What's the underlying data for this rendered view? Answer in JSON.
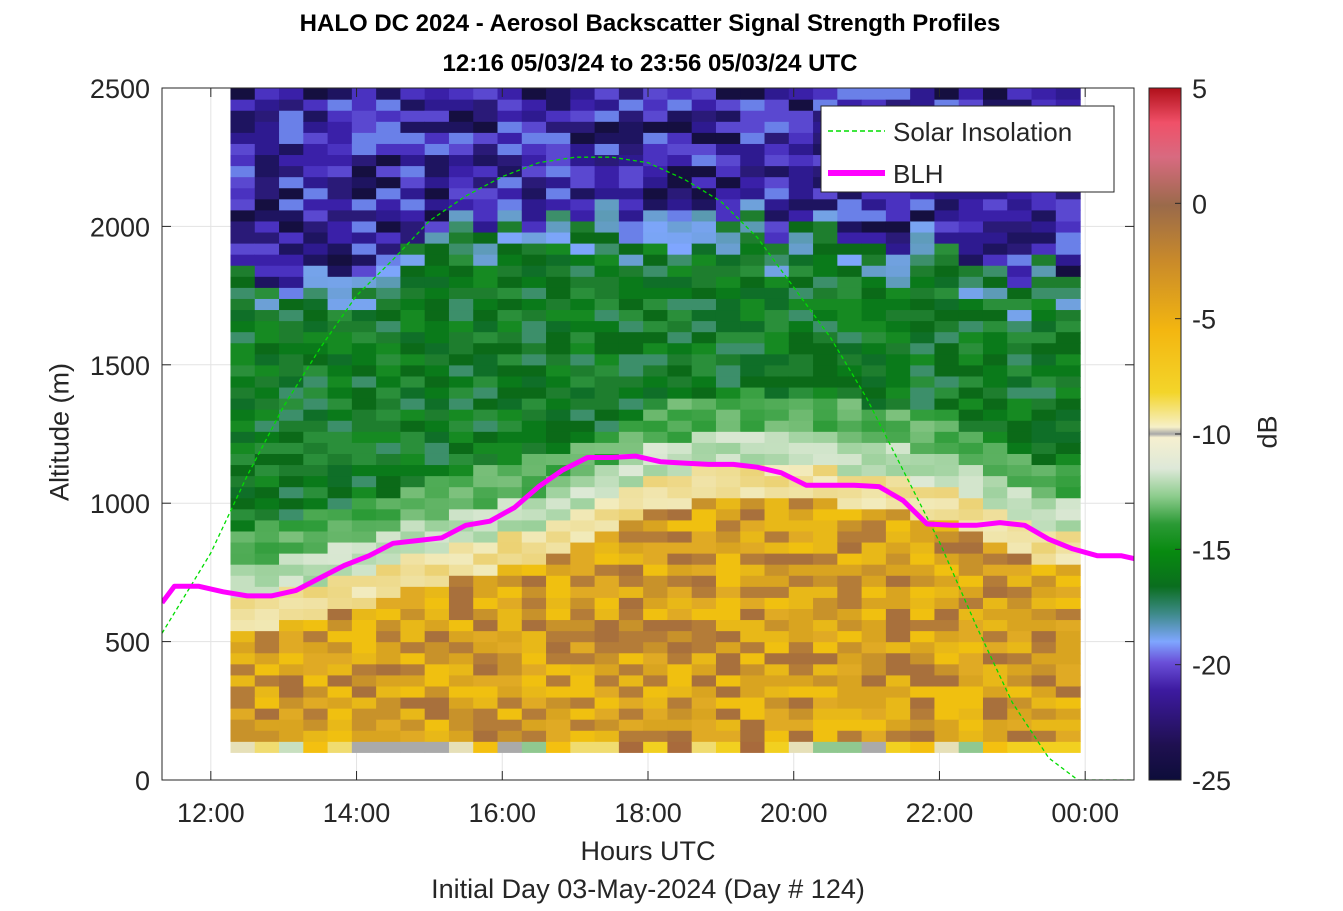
{
  "chart_data": {
    "type": "heatmap",
    "title": "HALO DC 2024 - Aerosol Backscatter Signal Strength Profiles",
    "subtitle": "12:16 05/03/24 to 23:56 05/03/24  UTC",
    "xlabel": "Hours UTC",
    "ylabel": "Altitude (m)",
    "footer": "Initial Day 03-May-2024 (Day # 124)",
    "xlim": [
      11.33,
      24.67
    ],
    "ylim": [
      0,
      2500
    ],
    "x_ticks": [
      12,
      14,
      16,
      18,
      20,
      22,
      24
    ],
    "x_tick_labels": [
      "12:00",
      "14:00",
      "16:00",
      "18:00",
      "20:00",
      "22:00",
      "00:00"
    ],
    "y_ticks": [
      0,
      500,
      1000,
      1500,
      2000,
      2500
    ],
    "y_tick_labels": [
      "0",
      "500",
      "1000",
      "1500",
      "2000",
      "2500"
    ],
    "grid": true,
    "colorbar": {
      "label": "dB",
      "range": [
        -25,
        5
      ],
      "ticks": [
        -25,
        -20,
        -15,
        -10,
        -5,
        0,
        5
      ],
      "tick_labels": [
        "-25",
        "-20",
        "-15",
        "-10",
        "-5",
        "0",
        "5"
      ]
    },
    "heatmap": {
      "x_start": 12.27,
      "x_end": 23.93,
      "columns": 35,
      "z_units": "dB",
      "layers": [
        {
          "name": "lowest bin",
          "y_range": [
            100,
            140
          ],
          "value_db": -8
        },
        {
          "name": "aerosol boundary layer",
          "y_range": [
            140,
            "top"
          ],
          "value_db_range": [
            -8,
            -3
          ]
        },
        {
          "name": "entrainment zone",
          "thickness_m": 150,
          "value_db": -11
        },
        {
          "name": "free troposphere green",
          "y_range": [
            "top",
            2100
          ],
          "value_db_range": [
            -18,
            -14
          ]
        },
        {
          "name": "upper free troposphere",
          "y_range": [
            1700,
            2500
          ],
          "value_db_range": [
            -25,
            -19
          ]
        }
      ],
      "boundary_layer_top_m": [
        650,
        660,
        680,
        700,
        720,
        740,
        770,
        790,
        820,
        850,
        860,
        880,
        900,
        930,
        960,
        1000,
        1050,
        1080,
        1100,
        1120,
        1130,
        1140,
        1130,
        1120,
        1110,
        1100,
        1080,
        1070,
        1060,
        1060,
        1000,
        950,
        920,
        890,
        880
      ]
    },
    "series": [
      {
        "name": "Solar Insolation",
        "style": "dashed",
        "color": "#00dd00",
        "x": [
          11.33,
          12,
          12.5,
          13,
          13.5,
          14,
          14.5,
          15,
          15.5,
          16,
          16.5,
          17,
          17.5,
          18,
          18.5,
          19,
          19.5,
          20,
          20.5,
          21,
          21.5,
          22,
          22.5,
          23,
          23.5,
          23.9,
          24.67
        ],
        "y": [
          530,
          820,
          1100,
          1350,
          1560,
          1750,
          1880,
          2020,
          2110,
          2180,
          2230,
          2250,
          2250,
          2230,
          2170,
          2090,
          1960,
          1780,
          1600,
          1380,
          1120,
          860,
          560,
          280,
          80,
          0,
          0
        ]
      },
      {
        "name": "BLH",
        "style": "solid",
        "color": "#ff00ff",
        "x": [
          11.33,
          11.5,
          11.83,
          12.17,
          12.5,
          12.83,
          13.17,
          13.5,
          13.83,
          14.17,
          14.5,
          14.83,
          15.17,
          15.5,
          15.83,
          16.17,
          16.5,
          16.83,
          17.17,
          17.5,
          17.83,
          18.17,
          18.5,
          18.83,
          19.17,
          19.5,
          19.83,
          20.17,
          20.5,
          20.83,
          21.17,
          21.5,
          21.83,
          22.17,
          22.5,
          22.83,
          23.17,
          23.5,
          23.83,
          24.17,
          24.5,
          24.67
        ],
        "y": [
          640,
          700,
          700,
          680,
          665,
          665,
          685,
          730,
          775,
          810,
          855,
          865,
          875,
          920,
          935,
          985,
          1060,
          1120,
          1165,
          1165,
          1170,
          1150,
          1145,
          1140,
          1140,
          1130,
          1110,
          1065,
          1065,
          1065,
          1060,
          1010,
          925,
          920,
          920,
          930,
          920,
          870,
          835,
          810,
          810,
          800
        ]
      }
    ],
    "legend": {
      "position": "top-right",
      "entries": [
        "Solar Insolation",
        "BLH"
      ]
    }
  }
}
